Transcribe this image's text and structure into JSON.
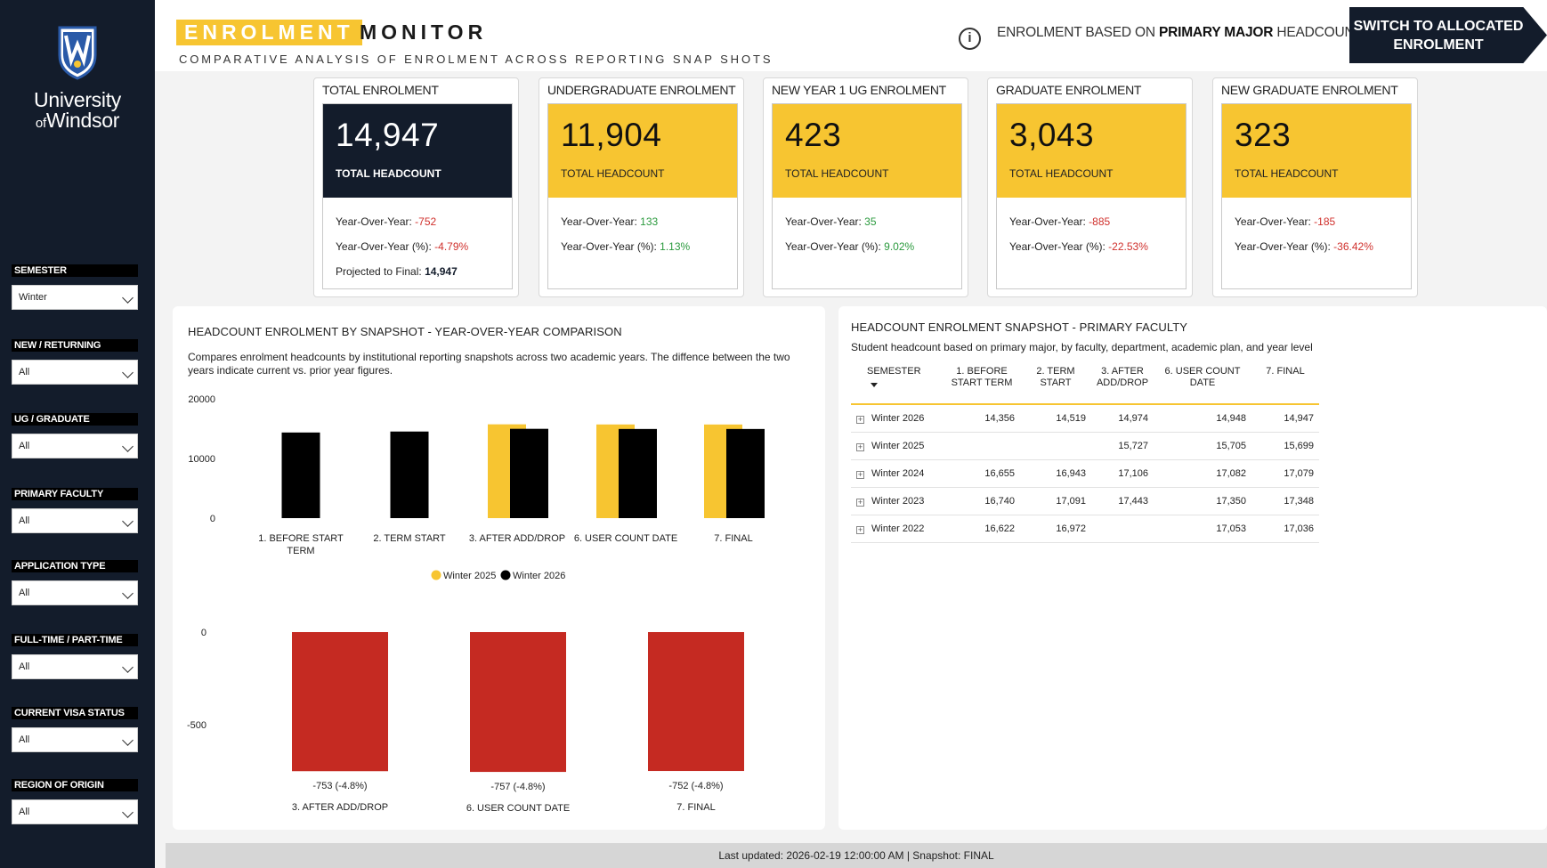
{
  "university": {
    "line1": "University",
    "line2_of": "of",
    "line2": "Windsor"
  },
  "filters": [
    {
      "label": "SEMESTER",
      "value": "Winter"
    },
    {
      "label": "NEW / RETURNING",
      "value": "All"
    },
    {
      "label": "UG / GRADUATE",
      "value": "All"
    },
    {
      "label": "PRIMARY FACULTY",
      "value": "All"
    },
    {
      "label": "APPLICATION TYPE",
      "value": "All"
    },
    {
      "label": "FULL-TIME / PART-TIME",
      "value": "All"
    },
    {
      "label": "CURRENT VISA STATUS",
      "value": "All"
    },
    {
      "label": "REGION OF ORIGIN",
      "value": "All"
    }
  ],
  "header": {
    "brand_highlight": "ENROLMENT",
    "brand_rest": "MONITOR",
    "subtitle": "COMPARATIVE ANALYSIS OF ENROLMENT ACROSS REPORTING SNAP SHOTS",
    "basis_pre": "ENROLMENT BASED ON",
    "basis_bold": "PRIMARY MAJOR",
    "basis_post": "HEADCOUNT",
    "switch_button": "SWITCH TO ALLOCATED ENROLMENT"
  },
  "kpis": [
    {
      "title": "TOTAL ENROLMENT",
      "value": "14,947",
      "caption": "TOTAL HEADCOUNT",
      "yoy_label": "Year-Over-Year:",
      "yoy": "-752",
      "yoy_pct_label": "Year-Over-Year (%):",
      "yoy_pct": "-4.79%",
      "projected_label": "Projected to Final:",
      "projected": "14,947"
    },
    {
      "title": "UNDERGRADUATE ENROLMENT",
      "value": "11,904",
      "caption": "TOTAL HEADCOUNT",
      "yoy_label": "Year-Over-Year:",
      "yoy": "133",
      "yoy_pct_label": "Year-Over-Year (%):",
      "yoy_pct": "1.13%"
    },
    {
      "title": "NEW YEAR 1 UG ENROLMENT",
      "value": "423",
      "caption": "TOTAL HEADCOUNT",
      "yoy_label": "Year-Over-Year:",
      "yoy": "35",
      "yoy_pct_label": "Year-Over-Year (%):",
      "yoy_pct": "9.02%"
    },
    {
      "title": "GRADUATE ENROLMENT",
      "value": "3,043",
      "caption": "TOTAL HEADCOUNT",
      "yoy_label": "Year-Over-Year:",
      "yoy": "-885",
      "yoy_pct_label": "Year-Over-Year (%):",
      "yoy_pct": "-22.53%"
    },
    {
      "title": "NEW GRADUATE ENROLMENT",
      "value": "323",
      "caption": "TOTAL HEADCOUNT",
      "yoy_label": "Year-Over-Year:",
      "yoy": "-185",
      "yoy_pct_label": "Year-Over-Year (%):",
      "yoy_pct": "-36.42%"
    }
  ],
  "left_panel": {
    "title": "HEADCOUNT ENROLMENT BY SNAPSHOT - YEAR-OVER-YEAR COMPARISON",
    "description": "Compares enrolment headcounts by institutional reporting snapshots across two academic years. The diffence between the two years indicate current vs. prior year figures."
  },
  "right_panel": {
    "title": "HEADCOUNT ENROLMENT SNAPSHOT - PRIMARY FACULTY",
    "description": "Student headcount based on primary major, by faculty, department, academic plan, and year level",
    "columns": [
      "SEMESTER",
      "1. BEFORE START TERM",
      "2. TERM START",
      "3. AFTER ADD/DROP",
      "6. USER COUNT DATE",
      "7. FINAL"
    ],
    "rows": [
      [
        "Winter 2026",
        "14,356",
        "14,519",
        "14,974",
        "14,948",
        "14,947"
      ],
      [
        "Winter 2025",
        "",
        "",
        "15,727",
        "15,705",
        "15,699"
      ],
      [
        "Winter 2024",
        "16,655",
        "16,943",
        "17,106",
        "17,082",
        "17,079"
      ],
      [
        "Winter 2023",
        "16,740",
        "17,091",
        "17,443",
        "17,350",
        "17,348"
      ],
      [
        "Winter 2022",
        "16,622",
        "16,972",
        "",
        "17,053",
        "17,036"
      ]
    ]
  },
  "footer": "Last updated: 2026-02-19 12:00:00 AM | Snapshot: FINAL",
  "colors": {
    "navy": "#131c2b",
    "gold": "#f7c531",
    "red": "#c52a22",
    "black": "#000000"
  },
  "chart_data": [
    {
      "type": "bar",
      "categories": [
        "1. BEFORE START TERM",
        "2. TERM START",
        "3. AFTER ADD/DROP",
        "6. USER COUNT DATE",
        "7. FINAL"
      ],
      "series": [
        {
          "name": "Winter 2025",
          "color": "#f7c531",
          "values": [
            null,
            null,
            15727,
            15705,
            15699
          ]
        },
        {
          "name": "Winter 2026",
          "color": "#000000",
          "values": [
            14356,
            14519,
            14974,
            14948,
            14947
          ]
        }
      ],
      "yticks": [
        "20000",
        "10000",
        "0"
      ],
      "ylim": [
        0,
        20000
      ],
      "legend": "bottom-center"
    },
    {
      "type": "bar",
      "categories": [
        "3. AFTER ADD/DROP",
        "6. USER COUNT DATE",
        "7. FINAL"
      ],
      "values": [
        -753,
        -757,
        -752
      ],
      "labels": [
        "-753 (-4.8%)",
        "-757 (-4.8%)",
        "-752 (-4.8%)"
      ],
      "color": "#c52a22",
      "yticks": [
        "0",
        "-500"
      ],
      "ylim": [
        -800,
        0
      ]
    }
  ]
}
